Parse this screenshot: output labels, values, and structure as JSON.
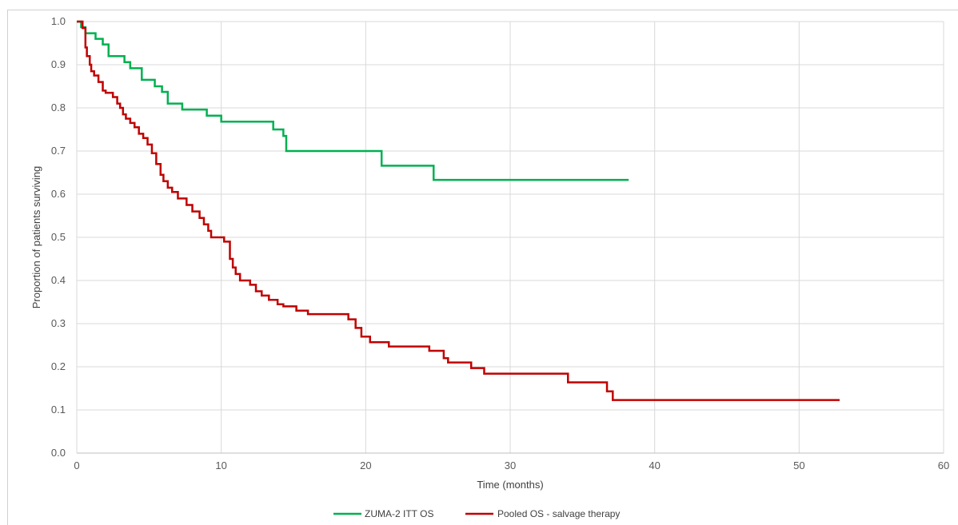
{
  "chart_data": {
    "type": "line",
    "title": "",
    "xlabel": "Time (months)",
    "ylabel": "Proportion of patients surviving",
    "xlim": [
      0,
      60
    ],
    "ylim": [
      0.0,
      1.0
    ],
    "xticks": [
      "0",
      "10",
      "20",
      "30",
      "40",
      "50",
      "60"
    ],
    "yticks": [
      "0.0",
      "0.1",
      "0.2",
      "0.3",
      "0.4",
      "0.5",
      "0.6",
      "0.7",
      "0.8",
      "0.9",
      "1.0"
    ],
    "grid": true,
    "legend_position": "bottom",
    "series": [
      {
        "name": "ZUMA-2 ITT OS",
        "color": "#00b050",
        "step": true,
        "x": [
          0,
          0.3,
          0.6,
          1.3,
          1.8,
          2.2,
          3.3,
          3.7,
          4.5,
          5.4,
          5.9,
          6.3,
          7.3,
          9.0,
          10.0,
          13.6,
          14.3,
          14.5,
          21.1,
          24.7,
          38.2
        ],
        "y": [
          1.0,
          0.987,
          0.973,
          0.96,
          0.947,
          0.92,
          0.906,
          0.892,
          0.865,
          0.85,
          0.837,
          0.81,
          0.796,
          0.782,
          0.768,
          0.75,
          0.735,
          0.7,
          0.666,
          0.633,
          0.633
        ]
      },
      {
        "name": "Pooled OS - salvage therapy",
        "color": "#c00000",
        "step": true,
        "x": [
          0,
          0.4,
          0.6,
          0.7,
          0.9,
          1.0,
          1.2,
          1.5,
          1.8,
          2.0,
          2.5,
          2.8,
          3.0,
          3.2,
          3.4,
          3.7,
          4.0,
          4.3,
          4.6,
          4.9,
          5.2,
          5.5,
          5.8,
          6.0,
          6.3,
          6.6,
          7.0,
          7.6,
          8.0,
          8.5,
          8.8,
          9.1,
          9.3,
          10.2,
          10.6,
          10.8,
          11.0,
          11.3,
          12.0,
          12.4,
          12.8,
          13.3,
          13.9,
          14.3,
          15.2,
          16.0,
          18.8,
          19.3,
          19.7,
          20.3,
          21.6,
          24.4,
          25.4,
          25.7,
          27.3,
          28.2,
          34.0,
          36.7,
          37.1,
          52.8
        ],
        "y": [
          1.0,
          0.985,
          0.94,
          0.92,
          0.9,
          0.885,
          0.875,
          0.86,
          0.84,
          0.835,
          0.825,
          0.81,
          0.8,
          0.785,
          0.775,
          0.765,
          0.755,
          0.74,
          0.73,
          0.715,
          0.695,
          0.67,
          0.645,
          0.63,
          0.615,
          0.605,
          0.59,
          0.575,
          0.56,
          0.545,
          0.53,
          0.515,
          0.5,
          0.49,
          0.45,
          0.43,
          0.415,
          0.4,
          0.39,
          0.375,
          0.365,
          0.355,
          0.345,
          0.34,
          0.33,
          0.322,
          0.31,
          0.29,
          0.27,
          0.257,
          0.247,
          0.237,
          0.22,
          0.21,
          0.197,
          0.184,
          0.164,
          0.143,
          0.123,
          0.123
        ]
      }
    ]
  }
}
